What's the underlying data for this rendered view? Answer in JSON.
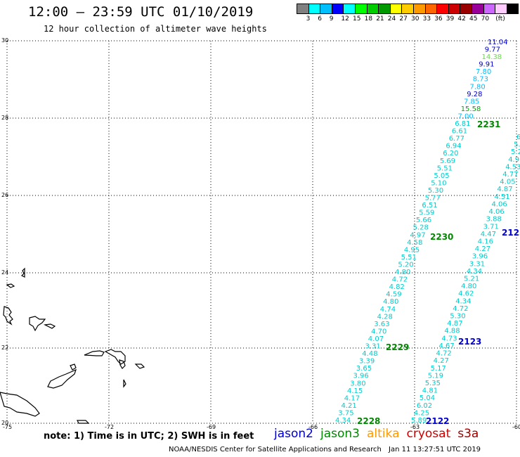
{
  "header": {
    "title": "12:00 – 23:59 UTC 01/10/2019",
    "subtitle": "12 hour collection of altimeter wave heights"
  },
  "colorbar": {
    "colors": [
      "#808080",
      "#00ffff",
      "#00bfff",
      "#0000ff",
      "#00ffff",
      "#00ff00",
      "#00cc00",
      "#009900",
      "#ffff00",
      "#ffcc00",
      "#ff9900",
      "#ff6600",
      "#ff0000",
      "#cc0000",
      "#990000",
      "#990099",
      "#cc66ff",
      "#ffccff",
      "#000000"
    ],
    "labels": [
      "3",
      "6",
      "9",
      "12",
      "15",
      "18",
      "21",
      "24",
      "27",
      "30",
      "33",
      "36",
      "39",
      "42",
      "45",
      "70"
    ],
    "unit": "(ft)"
  },
  "axes": {
    "lat_ticks": [
      "30",
      "28",
      "26",
      "24",
      "22",
      "20"
    ],
    "lon_ticks": [
      "-75",
      "-72",
      "-69",
      "-66",
      "-63",
      "-60"
    ]
  },
  "passes": {
    "p2231": {
      "label": "2231",
      "color": "#008800"
    },
    "p2230": {
      "label": "2230",
      "color": "#008800"
    },
    "p2229": {
      "label": "2229",
      "color": "#008800"
    },
    "p2228": {
      "label": "2228",
      "color": "#008800"
    },
    "p2123a": {
      "label": "2123",
      "color": "#0000cc"
    },
    "p2123b": {
      "label": "2123",
      "color": "#0000cc"
    },
    "p2122": {
      "label": "2122",
      "color": "#0000cc"
    }
  },
  "track_west": [
    {
      "v": "11.04",
      "c": "#0000cc"
    },
    {
      "v": "9.77",
      "c": "#0000cc"
    },
    {
      "v": "14.38",
      "c": "#66dd44"
    },
    {
      "v": "9.91",
      "c": "#0000cc"
    },
    {
      "v": "7.80",
      "c": "#00bfff"
    },
    {
      "v": "8.73",
      "c": "#00bfff"
    },
    {
      "v": "7.80",
      "c": "#00bfff"
    },
    {
      "v": "9.28",
      "c": "#0000cc"
    },
    {
      "v": "7.85",
      "c": "#00bfff"
    },
    {
      "v": "15.58",
      "c": "#00aa00"
    },
    {
      "v": "7.00",
      "c": "#00bfff"
    },
    {
      "v": "6.81",
      "c": "#00cccc"
    },
    {
      "v": "6.61",
      "c": "#00cccc"
    },
    {
      "v": "6.77",
      "c": "#00cccc"
    },
    {
      "v": "6.94",
      "c": "#00cccc"
    },
    {
      "v": "6.20",
      "c": "#00cccc"
    },
    {
      "v": "5.69",
      "c": "#00cccc"
    },
    {
      "v": "5.51",
      "c": "#00cccc"
    },
    {
      "v": "5.05",
      "c": "#00cccc"
    },
    {
      "v": "5.10",
      "c": "#00cccc"
    },
    {
      "v": "5.30",
      "c": "#00cccc"
    },
    {
      "v": "5.77",
      "c": "#00cccc"
    },
    {
      "v": "6.51",
      "c": "#00cccc"
    },
    {
      "v": "5.59",
      "c": "#00cccc"
    },
    {
      "v": "5.66",
      "c": "#00cccc"
    },
    {
      "v": "5.28",
      "c": "#00cccc"
    },
    {
      "v": "4.97",
      "c": "#00cccc"
    },
    {
      "v": "4.58",
      "c": "#00cccc"
    },
    {
      "v": "4.95",
      "c": "#00cccc"
    },
    {
      "v": "5.51",
      "c": "#00cccc"
    },
    {
      "v": "5.20",
      "c": "#00cccc"
    },
    {
      "v": "4.80",
      "c": "#00cccc"
    },
    {
      "v": "4.72",
      "c": "#00cccc"
    },
    {
      "v": "4.82",
      "c": "#00cccc"
    },
    {
      "v": "4.59",
      "c": "#00cccc"
    },
    {
      "v": "4.80",
      "c": "#00cccc"
    },
    {
      "v": "4.74",
      "c": "#00cccc"
    },
    {
      "v": "4.28",
      "c": "#00cccc"
    },
    {
      "v": "3.63",
      "c": "#00cccc"
    },
    {
      "v": "4.70",
      "c": "#00cccc"
    },
    {
      "v": "4.07",
      "c": "#00cccc"
    },
    {
      "v": "3.31",
      "c": "#00cccc"
    },
    {
      "v": "4.48",
      "c": "#00cccc"
    },
    {
      "v": "3.39",
      "c": "#00cccc"
    },
    {
      "v": "3.65",
      "c": "#00cccc"
    },
    {
      "v": "3.96",
      "c": "#00cccc"
    },
    {
      "v": "3.80",
      "c": "#00cccc"
    },
    {
      "v": "4.15",
      "c": "#00cccc"
    },
    {
      "v": "4.17",
      "c": "#00cccc"
    },
    {
      "v": "4.21",
      "c": "#00cccc"
    },
    {
      "v": "3.75",
      "c": "#00cccc"
    },
    {
      "v": "4.34",
      "c": "#00cccc"
    }
  ],
  "track_east": [
    {
      "v": "6",
      "c": "#00cccc"
    },
    {
      "v": "5.",
      "c": "#00cccc"
    },
    {
      "v": "5.2",
      "c": "#00cccc"
    },
    {
      "v": "4.93",
      "c": "#00cccc"
    },
    {
      "v": "4.53",
      "c": "#00cccc"
    },
    {
      "v": "4.77",
      "c": "#00cccc"
    },
    {
      "v": "4.05",
      "c": "#00cccc"
    },
    {
      "v": "4.87",
      "c": "#00cccc"
    },
    {
      "v": "4.51",
      "c": "#00cccc"
    },
    {
      "v": "4.06",
      "c": "#00cccc"
    },
    {
      "v": "4.06",
      "c": "#00cccc"
    },
    {
      "v": "3.88",
      "c": "#00cccc"
    },
    {
      "v": "3.71",
      "c": "#00cccc"
    },
    {
      "v": "4.47",
      "c": "#00cccc"
    },
    {
      "v": "4.16",
      "c": "#00cccc"
    },
    {
      "v": "4.27",
      "c": "#00cccc"
    },
    {
      "v": "3.96",
      "c": "#00cccc"
    },
    {
      "v": "3.31",
      "c": "#00cccc"
    },
    {
      "v": "4.34",
      "c": "#00cccc"
    },
    {
      "v": "5.21",
      "c": "#00cccc"
    },
    {
      "v": "4.80",
      "c": "#00cccc"
    },
    {
      "v": "4.62",
      "c": "#00cccc"
    },
    {
      "v": "4.34",
      "c": "#00cccc"
    },
    {
      "v": "4.72",
      "c": "#00cccc"
    },
    {
      "v": "5.30",
      "c": "#00cccc"
    },
    {
      "v": "4.87",
      "c": "#00cccc"
    },
    {
      "v": "4.88",
      "c": "#00cccc"
    },
    {
      "v": "4.73",
      "c": "#00cccc"
    },
    {
      "v": "4.67",
      "c": "#00cccc"
    },
    {
      "v": "4.72",
      "c": "#00cccc"
    },
    {
      "v": "4.27",
      "c": "#00cccc"
    },
    {
      "v": "5.17",
      "c": "#00cccc"
    },
    {
      "v": "5.19",
      "c": "#00cccc"
    },
    {
      "v": "5.35",
      "c": "#00cccc"
    },
    {
      "v": "4.81",
      "c": "#00cccc"
    },
    {
      "v": "5.04",
      "c": "#00cccc"
    },
    {
      "v": "6.02",
      "c": "#00cccc"
    },
    {
      "v": "4.25",
      "c": "#00cccc"
    },
    {
      "v": "5.89",
      "c": "#00cccc"
    }
  ],
  "footer": {
    "note": "note: 1) Time is in UTC; 2) SWH is in feet",
    "legend": [
      {
        "label": "jason2",
        "color": "#0000cc"
      },
      {
        "label": "jason3",
        "color": "#008800"
      },
      {
        "label": "altika",
        "color": "#ff9900"
      },
      {
        "label": "cryosat",
        "color": "#cc0000"
      },
      {
        "label": "s3a",
        "color": "#990000"
      }
    ],
    "credit": "NOAA/NESDIS Center for Satellite Applications and Research",
    "timestamp": "Jan 11 13:27:51 UTC 2019"
  }
}
